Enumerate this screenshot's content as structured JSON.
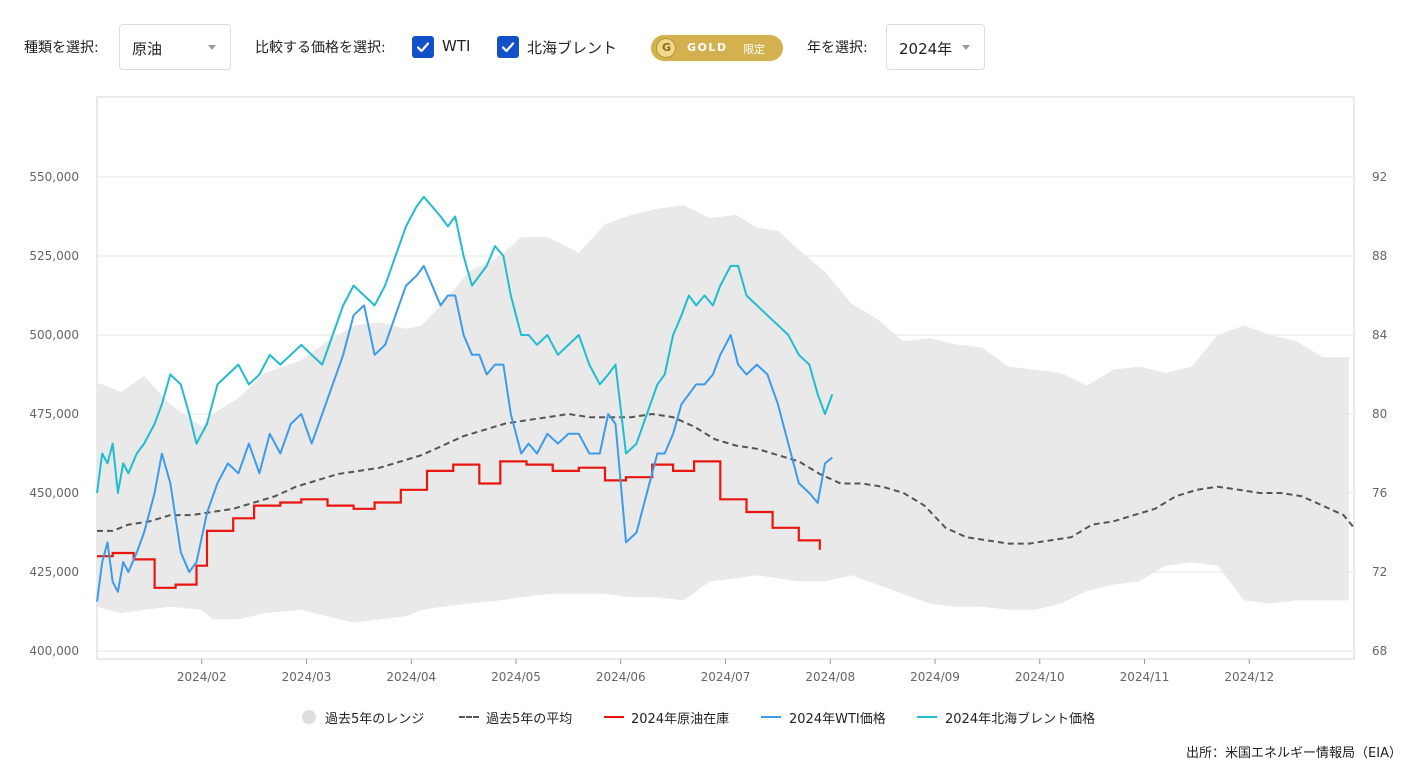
{
  "controls": {
    "type_label": "種類を選択:",
    "type_value": "原油",
    "compare_label": "比較する価格を選択:",
    "checkbox_wti": "WTI",
    "checkbox_brent": "北海ブレント",
    "gold_badge": "GOLD",
    "gold_badge_suffix": "限定",
    "year_label": "年を選択:",
    "year_value": "2024年"
  },
  "source": "出所：米国エネルギー情報局（EIA）",
  "colors": {
    "range": "#e9e9e9",
    "average": "#555555",
    "inventory": "#e8160f",
    "wti": "#3d9be9",
    "brent": "#22bcd0",
    "checkbox": "#1450c8",
    "gold": "#d4b14f"
  },
  "chart_data": {
    "type": "line",
    "left_ticks": [
      "550,000",
      "525,000",
      "500,000",
      "475,000",
      "450,000",
      "425,000",
      "400,000"
    ],
    "right_ticks": [
      "92",
      "88",
      "84",
      "80",
      "76",
      "72",
      "68"
    ],
    "x_ticks": [
      "2024/02",
      "2024/03",
      "2024/04",
      "2024/05",
      "2024/06",
      "2024/07",
      "2024/08",
      "2024/09",
      "2024/10",
      "2024/11",
      "2024/12"
    ],
    "left_axis": {
      "unit": "thousand barrels",
      "ylim": [
        400000,
        550000
      ]
    },
    "right_axis": {
      "unit": "USD/barrel",
      "ylim": [
        68,
        92
      ]
    },
    "x_range_months": [
      1,
      13
    ],
    "legend_position": "bottom",
    "legend": [
      "過去5年のレンジ",
      "過去5年の平均",
      "2024年原油在庫",
      "2024年WTI価格",
      "2024年北海ブレント価格"
    ],
    "series": [
      {
        "name": "過去5年のレンジ",
        "axis": "left",
        "kind": "band",
        "x": [
          1.0,
          1.23,
          1.45,
          1.7,
          2.0,
          2.1,
          2.35,
          2.6,
          2.95,
          3.2,
          3.45,
          3.7,
          3.95,
          4.1,
          4.3,
          4.55,
          4.85,
          5.05,
          5.3,
          5.6,
          5.85,
          6.1,
          6.35,
          6.6,
          6.85,
          7.1,
          7.3,
          7.5,
          7.7,
          7.95,
          8.2,
          8.45,
          8.7,
          8.95,
          9.2,
          9.45,
          9.7,
          9.95,
          10.2,
          10.45,
          10.7,
          10.95,
          11.2,
          11.45,
          11.7,
          11.95,
          12.2,
          12.45,
          12.7,
          12.95
        ],
        "high": [
          485000,
          482000,
          487000,
          478000,
          471000,
          475000,
          480000,
          488000,
          492000,
          498000,
          503000,
          504000,
          502000,
          503000,
          510000,
          520000,
          525000,
          531000,
          531000,
          526000,
          535000,
          538000,
          540000,
          541000,
          537000,
          538000,
          534000,
          533000,
          527000,
          520000,
          510000,
          505000,
          498000,
          499000,
          497000,
          496000,
          490000,
          489000,
          488000,
          484000,
          489000,
          490000,
          488000,
          490000,
          500000,
          503000,
          500000,
          498000,
          493000,
          493000
        ],
        "low": [
          414000,
          412000,
          413000,
          414000,
          413000,
          410000,
          410000,
          412000,
          413000,
          411000,
          409000,
          410000,
          411000,
          413000,
          414000,
          415000,
          416000,
          417000,
          418000,
          418000,
          418000,
          417000,
          417000,
          416000,
          422000,
          423000,
          424000,
          423000,
          422000,
          422000,
          424000,
          421000,
          418000,
          415000,
          414000,
          414000,
          413000,
          413000,
          415000,
          419000,
          421000,
          422000,
          427000,
          428000,
          427000,
          416000,
          415000,
          416000,
          416000,
          416000
        ]
      },
      {
        "name": "過去5年の平均",
        "axis": "left",
        "kind": "dashed",
        "x": [
          1.0,
          1.15,
          1.3,
          1.5,
          1.7,
          1.9,
          2.1,
          2.3,
          2.5,
          2.7,
          2.9,
          3.1,
          3.3,
          3.5,
          3.7,
          3.9,
          4.1,
          4.3,
          4.5,
          4.7,
          4.9,
          5.1,
          5.3,
          5.5,
          5.7,
          5.9,
          6.1,
          6.3,
          6.5,
          6.7,
          6.9,
          7.1,
          7.3,
          7.5,
          7.7,
          7.9,
          8.1,
          8.3,
          8.5,
          8.7,
          8.9,
          9.1,
          9.3,
          9.5,
          9.7,
          9.9,
          10.1,
          10.3,
          10.5,
          10.7,
          10.9,
          11.1,
          11.3,
          11.5,
          11.7,
          11.9,
          12.1,
          12.3,
          12.5,
          12.7,
          12.9,
          13.0
        ],
        "values": [
          438000,
          438000,
          440000,
          441000,
          443000,
          443000,
          444000,
          445000,
          447000,
          449000,
          452000,
          454000,
          456000,
          457000,
          458000,
          460000,
          462000,
          465000,
          468000,
          470000,
          472000,
          473000,
          474000,
          475000,
          474000,
          474000,
          474000,
          475000,
          474000,
          471000,
          467000,
          465000,
          464000,
          462000,
          460000,
          456000,
          453000,
          453000,
          452000,
          450000,
          446000,
          439000,
          436000,
          435000,
          434000,
          434000,
          435000,
          436000,
          440000,
          441000,
          443000,
          445000,
          449000,
          451000,
          452000,
          451000,
          450000,
          450000,
          449000,
          446000,
          443000,
          439000
        ]
      },
      {
        "name": "2024年原油在庫",
        "axis": "left",
        "kind": "step",
        "x": [
          1.0,
          1.15,
          1.35,
          1.55,
          1.75,
          1.95,
          2.05,
          2.3,
          2.5,
          2.75,
          2.95,
          3.2,
          3.45,
          3.65,
          3.9,
          4.15,
          4.4,
          4.65,
          4.85,
          5.1,
          5.35,
          5.6,
          5.85,
          6.05,
          6.3,
          6.5,
          6.7,
          6.95,
          7.2,
          7.45,
          7.7,
          7.9
        ],
        "values": [
          430000,
          431000,
          429000,
          420000,
          421000,
          427000,
          438000,
          442000,
          446000,
          447000,
          448000,
          446000,
          445000,
          447000,
          451000,
          457000,
          459000,
          453000,
          460000,
          459000,
          457000,
          458000,
          454000,
          455000,
          459000,
          457000,
          460000,
          448000,
          444000,
          439000,
          435000,
          432000
        ]
      },
      {
        "name": "2024年WTI価格",
        "axis": "right",
        "kind": "line",
        "x": [
          1.0,
          1.05,
          1.1,
          1.15,
          1.2,
          1.25,
          1.3,
          1.38,
          1.45,
          1.55,
          1.62,
          1.7,
          1.8,
          1.88,
          1.95,
          2.05,
          2.15,
          2.25,
          2.35,
          2.45,
          2.55,
          2.65,
          2.75,
          2.85,
          2.95,
          3.05,
          3.15,
          3.25,
          3.35,
          3.45,
          3.55,
          3.65,
          3.75,
          3.85,
          3.95,
          4.05,
          4.12,
          4.2,
          4.28,
          4.35,
          4.42,
          4.5,
          4.58,
          4.65,
          4.72,
          4.8,
          4.88,
          4.95,
          5.05,
          5.12,
          5.2,
          5.3,
          5.4,
          5.5,
          5.6,
          5.7,
          5.8,
          5.88,
          5.95,
          6.05,
          6.15,
          6.25,
          6.35,
          6.42,
          6.5,
          6.58,
          6.65,
          6.72,
          6.8,
          6.88,
          6.95,
          7.05,
          7.12,
          7.2,
          7.3,
          7.4,
          7.5,
          7.6,
          7.7,
          7.8,
          7.88,
          7.95,
          8.02
        ],
        "values": [
          70.5,
          72.5,
          73.5,
          71.5,
          71.0,
          72.5,
          72.0,
          73.0,
          74.0,
          76.0,
          78.0,
          76.5,
          73.0,
          72.0,
          72.5,
          75.0,
          76.5,
          77.5,
          77.0,
          78.5,
          77.0,
          79.0,
          78.0,
          79.5,
          80.0,
          78.5,
          80.0,
          81.5,
          83.0,
          85.0,
          85.5,
          83.0,
          83.5,
          85.0,
          86.5,
          87.0,
          87.5,
          86.5,
          85.5,
          86.0,
          86.0,
          84.0,
          83.0,
          83.0,
          82.0,
          82.5,
          82.5,
          80.0,
          78.0,
          78.5,
          78.0,
          79.0,
          78.5,
          79.0,
          79.0,
          78.0,
          78.0,
          80.0,
          79.5,
          73.5,
          74.0,
          76.0,
          78.0,
          78.0,
          79.0,
          80.5,
          81.0,
          81.5,
          81.5,
          82.0,
          83.0,
          84.0,
          82.5,
          82.0,
          82.5,
          82.0,
          80.5,
          78.5,
          76.5,
          76.0,
          75.5,
          77.5,
          77.8
        ]
      },
      {
        "name": "2024年北海ブレント価格",
        "axis": "right",
        "kind": "line",
        "x": [
          1.0,
          1.05,
          1.1,
          1.15,
          1.2,
          1.25,
          1.3,
          1.38,
          1.45,
          1.55,
          1.62,
          1.7,
          1.8,
          1.88,
          1.95,
          2.05,
          2.15,
          2.25,
          2.35,
          2.45,
          2.55,
          2.65,
          2.75,
          2.85,
          2.95,
          3.05,
          3.15,
          3.25,
          3.35,
          3.45,
          3.55,
          3.65,
          3.75,
          3.85,
          3.95,
          4.05,
          4.12,
          4.2,
          4.28,
          4.35,
          4.42,
          4.5,
          4.58,
          4.65,
          4.72,
          4.8,
          4.88,
          4.95,
          5.05,
          5.12,
          5.2,
          5.3,
          5.4,
          5.5,
          5.6,
          5.7,
          5.8,
          5.88,
          5.95,
          6.05,
          6.15,
          6.25,
          6.35,
          6.42,
          6.5,
          6.58,
          6.65,
          6.72,
          6.8,
          6.88,
          6.95,
          7.05,
          7.12,
          7.2,
          7.3,
          7.4,
          7.5,
          7.6,
          7.7,
          7.8,
          7.88,
          7.95,
          8.02
        ],
        "values": [
          76.0,
          78.0,
          77.5,
          78.5,
          76.0,
          77.5,
          77.0,
          78.0,
          78.5,
          79.5,
          80.5,
          82.0,
          81.5,
          80.0,
          78.5,
          79.5,
          81.5,
          82.0,
          82.5,
          81.5,
          82.0,
          83.0,
          82.5,
          83.0,
          83.5,
          83.0,
          82.5,
          84.0,
          85.5,
          86.5,
          86.0,
          85.5,
          86.5,
          88.0,
          89.5,
          90.5,
          91.0,
          90.5,
          90.0,
          89.5,
          90.0,
          88.0,
          86.5,
          87.0,
          87.5,
          88.5,
          88.0,
          86.0,
          84.0,
          84.0,
          83.5,
          84.0,
          83.0,
          83.5,
          84.0,
          82.5,
          81.5,
          82.0,
          82.5,
          78.0,
          78.5,
          80.0,
          81.5,
          82.0,
          84.0,
          85.0,
          86.0,
          85.5,
          86.0,
          85.5,
          86.5,
          87.5,
          87.5,
          86.0,
          85.5,
          85.0,
          84.5,
          84.0,
          83.0,
          82.5,
          81.0,
          80.0,
          81.0
        ]
      }
    ]
  }
}
